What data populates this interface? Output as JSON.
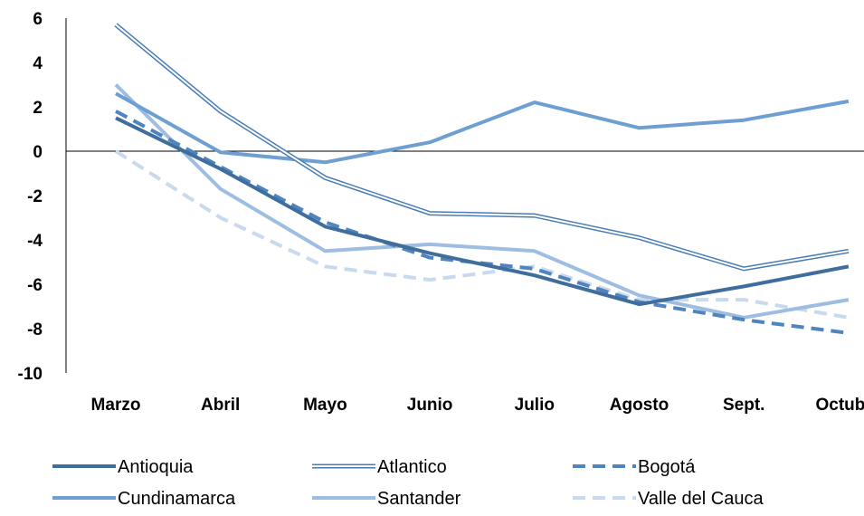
{
  "chart_data": {
    "type": "line",
    "categories": [
      "Marzo",
      "Abril",
      "Mayo",
      "Junio",
      "Julio",
      "Agosto",
      "Sept.",
      "Octubre"
    ],
    "ylim": [
      -10,
      6
    ],
    "yticks": [
      "6",
      "4",
      "2",
      "0",
      "-2",
      "-4",
      "-6",
      "-8",
      "-10"
    ],
    "grid": false,
    "legend_position": "bottom",
    "series": [
      {
        "name": "Antioquia",
        "style": "solid",
        "color": "#3f6e9e",
        "values": [
          1.5,
          -0.8,
          -3.4,
          -4.6,
          -5.6,
          -6.9,
          -6.1,
          -5.2
        ]
      },
      {
        "name": "Atlantico",
        "style": "double",
        "color": "#4a7db5",
        "values": [
          5.7,
          1.8,
          -1.2,
          -2.8,
          -2.9,
          -3.9,
          -5.3,
          -4.5
        ]
      },
      {
        "name": "Bogotá",
        "style": "dashed",
        "color": "#4f84bf",
        "values": [
          1.8,
          -0.7,
          -3.2,
          -4.8,
          -5.3,
          -6.8,
          -7.6,
          -8.2
        ]
      },
      {
        "name": "Cundinamarca",
        "style": "solid",
        "color": "#6e9fd2",
        "values": [
          2.6,
          -0.05,
          -0.5,
          0.4,
          2.2,
          1.05,
          1.4,
          2.25
        ]
      },
      {
        "name": "Santander",
        "style": "solid",
        "color": "#9ebde2",
        "values": [
          3.0,
          -1.7,
          -4.5,
          -4.2,
          -4.5,
          -6.5,
          -7.5,
          -6.7
        ]
      },
      {
        "name": "Valle del Cauca",
        "style": "dashed",
        "color": "#c9d9ee",
        "values": [
          0.0,
          -3.0,
          -5.2,
          -5.8,
          -5.2,
          -6.7,
          -6.7,
          -7.5
        ]
      }
    ]
  }
}
